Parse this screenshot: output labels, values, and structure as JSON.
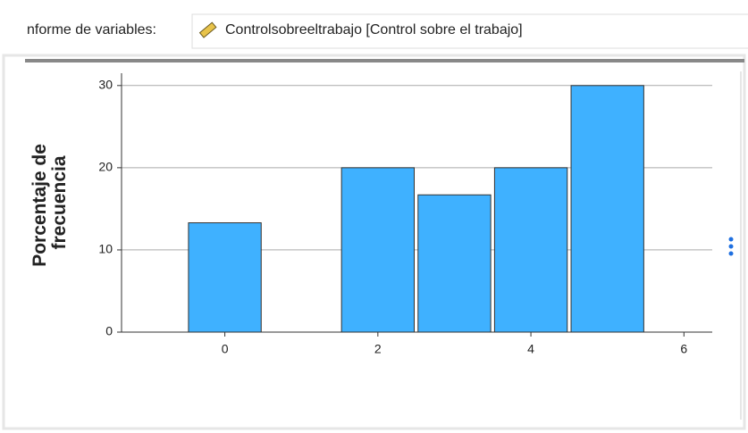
{
  "header": {
    "label": "nforme de variables:",
    "variable": "Controlsobreeltrabajo  [Control sobre el trabajo]"
  },
  "chart_data": {
    "type": "bar",
    "ylabel": [
      "Porcentaje de",
      "frecuencia"
    ],
    "x": [
      0,
      2,
      3,
      4,
      5
    ],
    "values": [
      13.3,
      20,
      16.7,
      20,
      30
    ],
    "color": "#3fb1ff",
    "xlim": [
      -1.35,
      6.37
    ],
    "xticks": [
      0,
      2,
      4,
      6
    ],
    "ylim": [
      0,
      31.5
    ],
    "yticks": [
      0,
      10,
      20,
      30
    ],
    "grid": true
  }
}
